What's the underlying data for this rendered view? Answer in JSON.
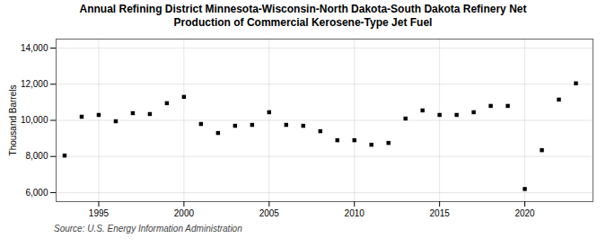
{
  "chart_data": {
    "type": "scatter",
    "title": "Annual Refining District Minnesota-Wisconsin-North Dakota-South Dakota Refinery Net\nProduction of Commercial Kerosene-Type Jet Fuel",
    "ylabel": "Thousand Barrels",
    "source": "Source: U.S. Energy Information Administration",
    "x": [
      1993,
      1994,
      1995,
      1996,
      1997,
      1998,
      1999,
      2000,
      2001,
      2002,
      2003,
      2004,
      2005,
      2006,
      2007,
      2008,
      2009,
      2010,
      2011,
      2012,
      2013,
      2014,
      2015,
      2016,
      2017,
      2018,
      2019,
      2020,
      2021,
      2022,
      2023
    ],
    "values": [
      8050,
      10200,
      10300,
      9950,
      10400,
      10350,
      10950,
      11300,
      9800,
      9300,
      9700,
      9750,
      10450,
      9750,
      9700,
      9400,
      8900,
      8900,
      8650,
      8750,
      10100,
      10550,
      10300,
      10300,
      10450,
      10800,
      10800,
      6200,
      8350,
      11150,
      12050
    ],
    "marker": "square",
    "xlim": [
      1992.5,
      2024
    ],
    "xticks": [
      1995,
      2000,
      2005,
      2010,
      2015,
      2020
    ],
    "ylim": [
      5500,
      14500
    ],
    "yticks": [
      {
        "value": 6000,
        "label": "6,000"
      },
      {
        "value": 8000,
        "label": "8,000"
      },
      {
        "value": 10000,
        "label": "10,000"
      },
      {
        "value": 12000,
        "label": "12,000"
      },
      {
        "value": 14000,
        "label": "14,000"
      }
    ],
    "grid": true
  }
}
